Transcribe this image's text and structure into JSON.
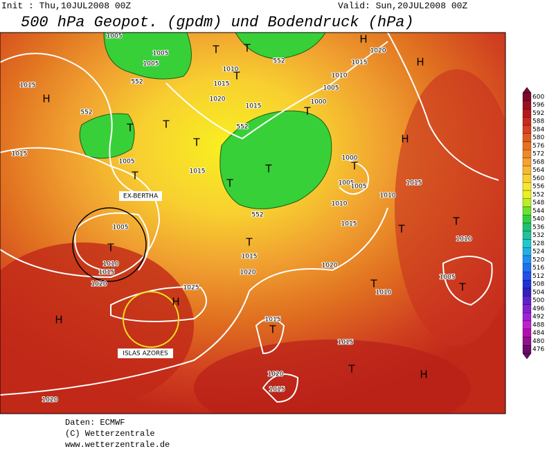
{
  "header": {
    "init": "Init : Thu,10JUL2008 00Z",
    "valid": "Valid: Sun,20JUL2008 00Z",
    "title": "500 hPa Geopot. (gpdm) und Bodendruck (hPa)"
  },
  "map": {
    "labels": [
      "1005",
      "1005",
      "1005",
      "552",
      "1015",
      "H",
      "1010",
      "T",
      "552",
      "T",
      "1015",
      "T",
      "1020",
      "1015",
      "1000",
      "T",
      "1005",
      "1010",
      "1015",
      "1020",
      "H",
      "H",
      "552",
      "T",
      "T",
      "552",
      "T",
      "T",
      "T",
      "1015",
      "1005",
      "T",
      "1015",
      "EX-BERTHA",
      "1000",
      "T",
      "1005",
      "1005",
      "1010",
      "1010",
      "1015",
      "H",
      "552",
      "1015",
      "1005",
      "T",
      "1010",
      "1015",
      "1020",
      "T",
      "1015",
      "1020",
      "1020",
      "T",
      "T",
      "1010",
      "1005",
      "T",
      "T",
      "1010",
      "1025",
      "H",
      "H",
      "1015",
      "T",
      "ISLAS AZORES",
      "1015",
      "T",
      "H",
      "1020",
      "1015",
      "1020"
    ]
  },
  "colorbar": {
    "ticks": [
      600,
      596,
      592,
      588,
      584,
      580,
      576,
      572,
      568,
      564,
      560,
      556,
      552,
      548,
      544,
      540,
      536,
      532,
      528,
      524,
      520,
      516,
      512,
      508,
      504,
      500,
      496,
      492,
      488,
      484,
      480,
      476
    ],
    "colors": [
      "#7a0a2a",
      "#9b1020",
      "#b41818",
      "#c82a1e",
      "#d84020",
      "#e05a20",
      "#e87020",
      "#f08828",
      "#f8a030",
      "#f8b830",
      "#f8d030",
      "#f8e828",
      "#e8f020",
      "#b8f020",
      "#70e030",
      "#30d040",
      "#20c070",
      "#20c0a0",
      "#20c8c8",
      "#20b0e8",
      "#2090f0",
      "#2070f0",
      "#2050e8",
      "#2030d8",
      "#3020c0",
      "#6020c8",
      "#8020d0",
      "#a020d8",
      "#c020d0",
      "#b010b0",
      "#901090",
      "#6a0a6a"
    ]
  },
  "footer": [
    "Daten: ECMWF",
    "(C) Wetterzentrale",
    "www.wetterzentrale.de"
  ]
}
